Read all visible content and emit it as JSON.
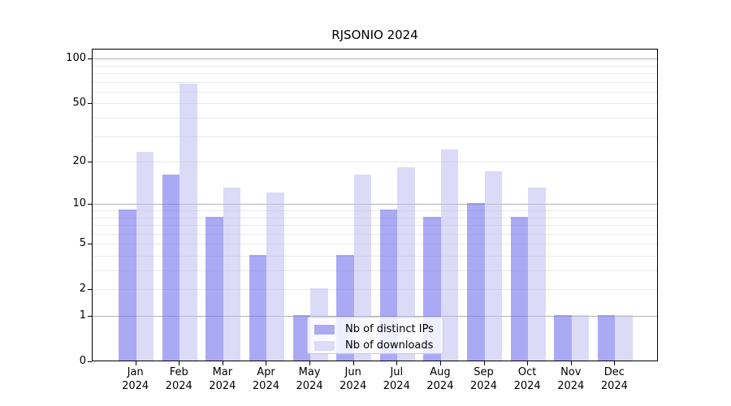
{
  "title": "RJSONIO 2024",
  "legend": {
    "items": [
      {
        "label": "Nb of distinct IPs"
      },
      {
        "label": "Nb of downloads"
      }
    ]
  },
  "colors": {
    "bar_distinct_ips": "rgba(120,120,238,0.63)",
    "bar_downloads": "rgba(190,190,240,0.55)",
    "swatch_distinct_ips": "#a9a9f4",
    "swatch_downloads": "#dcdcf8",
    "grid_major": "#b3b3b3",
    "grid_minor": "#e9e9e9",
    "axis": "#000000"
  },
  "chart_data": {
    "type": "bar",
    "title": "RJSONIO 2024",
    "categories": [
      "Jan 2024",
      "Feb 2024",
      "Mar 2024",
      "Apr 2024",
      "May 2024",
      "Jun 2024",
      "Jul 2024",
      "Aug 2024",
      "Sep 2024",
      "Oct 2024",
      "Nov 2024",
      "Dec 2024"
    ],
    "series": [
      {
        "name": "Nb of distinct IPs",
        "values": [
          9,
          16,
          8,
          4,
          1,
          4,
          9,
          8,
          10,
          8,
          1,
          1
        ]
      },
      {
        "name": "Nb of downloads",
        "values": [
          23,
          67,
          13,
          12,
          2,
          16,
          18,
          24,
          17,
          13,
          1,
          1
        ]
      }
    ],
    "yscale": "log1p",
    "ylim": [
      0,
      117
    ],
    "ytick_values": [
      0,
      1,
      2,
      5,
      10,
      20,
      50,
      100
    ],
    "ytick_labels": [
      "0",
      "1",
      "2",
      "5",
      "10",
      "20",
      "50",
      "100"
    ],
    "major_grid_values": [
      1,
      10,
      100
    ],
    "minor_grid_values": [
      2,
      3,
      4,
      5,
      6,
      7,
      8,
      9,
      20,
      30,
      40,
      50,
      60,
      70,
      80,
      90
    ],
    "grid": true,
    "legend_position": "lower-center"
  }
}
